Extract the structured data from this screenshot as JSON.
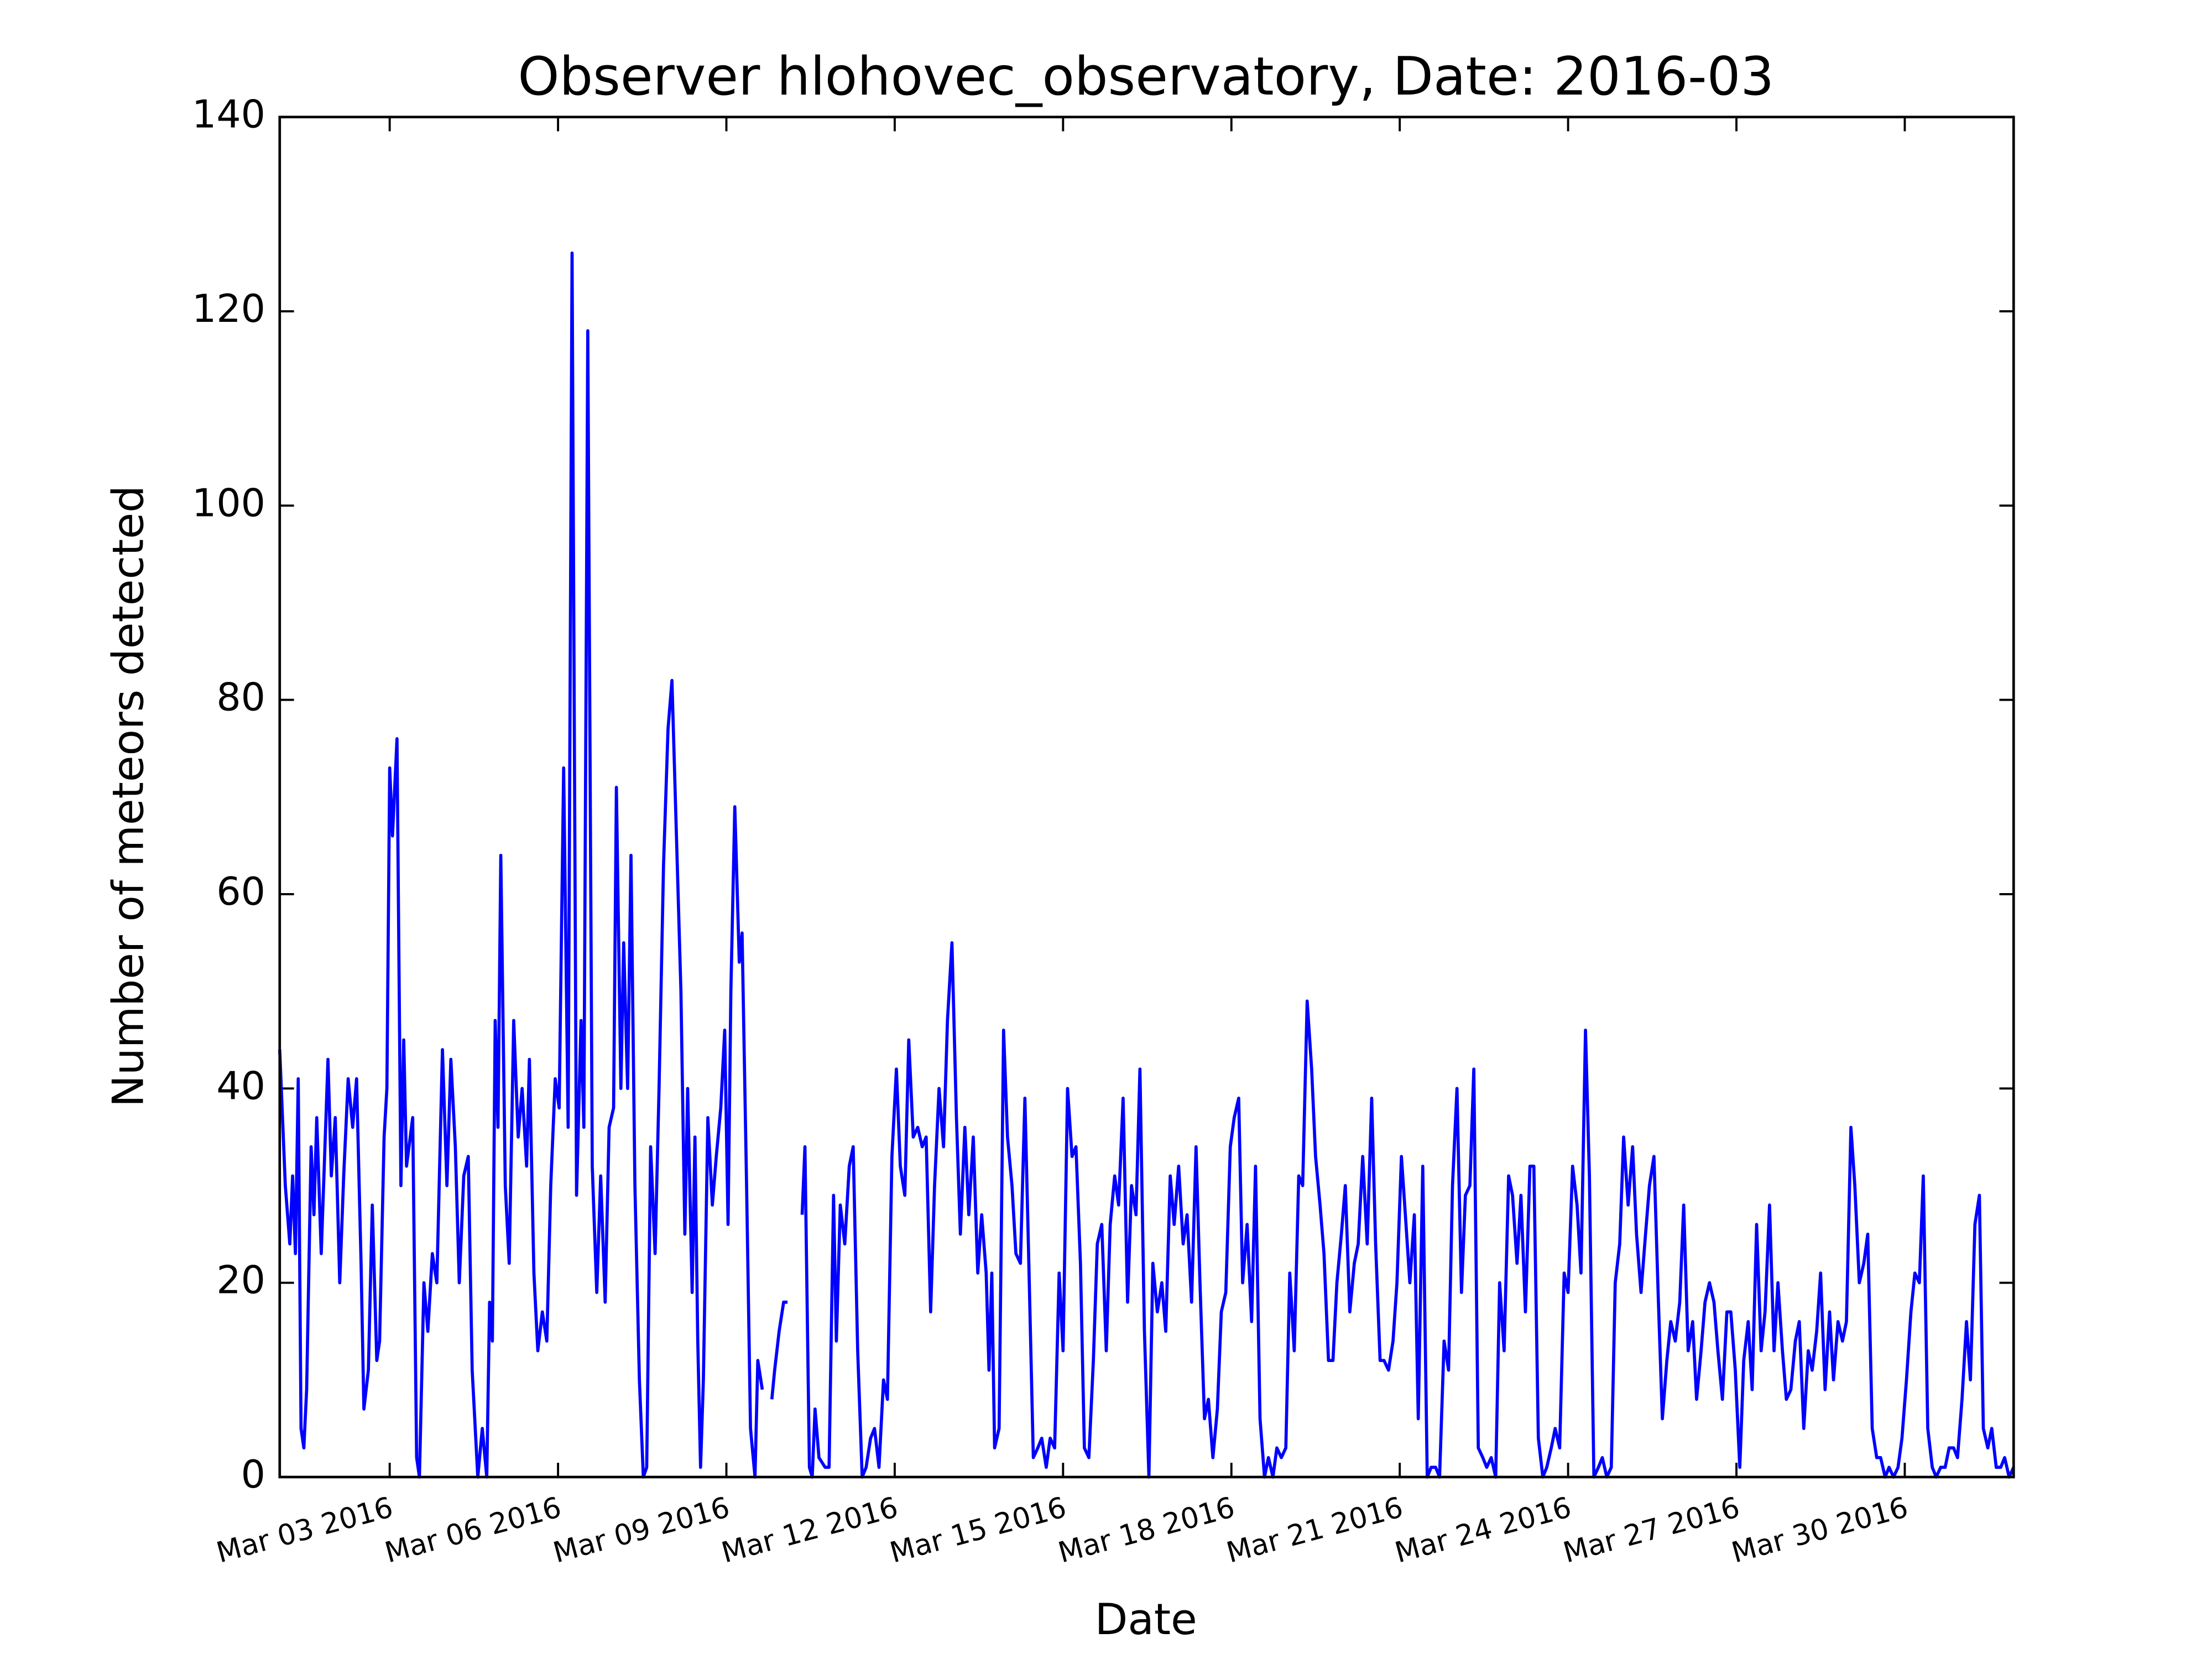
{
  "chart_data": {
    "type": "line",
    "title": "Observer hlohovec_observatory, Date: 2016-03",
    "x_label": "Date",
    "y_label": "Number of meteors detected",
    "color": "#0000ff",
    "xlim": [
      1.04,
      31.94
    ],
    "ylim": [
      0,
      140
    ],
    "yticks": [
      0,
      20,
      40,
      60,
      80,
      100,
      120,
      140
    ],
    "xticks": [
      {
        "value": 3,
        "label": "Mar 03 2016"
      },
      {
        "value": 6,
        "label": "Mar 06 2016"
      },
      {
        "value": 9,
        "label": "Mar 09 2016"
      },
      {
        "value": 12,
        "label": "Mar 12 2016"
      },
      {
        "value": 15,
        "label": "Mar 15 2016"
      },
      {
        "value": 18,
        "label": "Mar 18 2016"
      },
      {
        "value": 21,
        "label": "Mar 21 2016"
      },
      {
        "value": 24,
        "label": "Mar 24 2016"
      },
      {
        "value": 27,
        "label": "Mar 27 2016"
      },
      {
        "value": 30,
        "label": "Mar 30 2016"
      }
    ],
    "x": [
      1.04,
      1.14,
      1.22,
      1.27,
      1.32,
      1.37,
      1.42,
      1.47,
      1.52,
      1.6,
      1.65,
      1.7,
      1.78,
      1.9,
      1.96,
      2.03,
      2.11,
      2.18,
      2.26,
      2.34,
      2.41,
      2.49,
      2.54,
      2.62,
      2.69,
      2.77,
      2.82,
      2.9,
      2.95,
      3.0,
      3.05,
      3.13,
      3.2,
      3.25,
      3.3,
      3.41,
      3.48,
      3.53,
      3.61,
      3.68,
      3.76,
      3.84,
      3.94,
      4.02,
      4.09,
      4.17,
      4.24,
      4.32,
      4.4,
      4.47,
      4.57,
      4.65,
      4.73,
      4.78,
      4.83,
      4.88,
      4.93,
      4.98,
      5.06,
      5.13,
      5.21,
      5.29,
      5.36,
      5.44,
      5.49,
      5.57,
      5.64,
      5.72,
      5.8,
      5.87,
      5.95,
      6.02,
      6.1,
      6.18,
      6.25,
      6.33,
      6.41,
      6.46,
      6.53,
      6.61,
      6.69,
      6.76,
      6.84,
      6.91,
      6.99,
      7.04,
      7.12,
      7.17,
      7.24,
      7.3,
      7.37,
      7.45,
      7.52,
      7.58,
      7.65,
      7.73,
      7.8,
      7.88,
      7.96,
      8.03,
      8.11,
      8.19,
      8.26,
      8.31,
      8.39,
      8.44,
      8.49,
      8.54,
      8.59,
      8.67,
      8.75,
      8.82,
      8.9,
      8.97,
      9.03,
      9.08,
      9.15,
      9.23,
      9.28,
      9.36,
      9.43,
      9.51,
      9.56,
      9.64,
      9.71,
      9.81,
      9.86,
      9.94,
      10.02,
      10.09,
      10.17,
      10.35,
      10.4,
      10.48,
      10.53,
      10.58,
      10.65,
      10.76,
      10.83,
      10.91,
      10.96,
      11.03,
      11.11,
      11.19,
      11.26,
      11.34,
      11.42,
      11.49,
      11.57,
      11.64,
      11.72,
      11.8,
      11.87,
      11.95,
      12.03,
      12.1,
      12.18,
      12.25,
      12.33,
      12.41,
      12.49,
      12.56,
      12.64,
      12.71,
      12.79,
      12.87,
      12.94,
      13.02,
      13.1,
      13.17,
      13.25,
      13.32,
      13.4,
      13.48,
      13.55,
      13.63,
      13.68,
      13.73,
      13.78,
      13.86,
      13.94,
      14.01,
      14.09,
      14.16,
      14.24,
      14.32,
      14.39,
      14.47,
      14.55,
      14.62,
      14.7,
      14.77,
      14.85,
      14.93,
      15.0,
      15.08,
      15.16,
      15.23,
      15.31,
      15.38,
      15.46,
      15.54,
      15.61,
      15.69,
      15.77,
      15.84,
      15.92,
      15.99,
      16.07,
      16.15,
      16.22,
      16.3,
      16.37,
      16.45,
      16.53,
      16.6,
      16.68,
      16.76,
      16.83,
      16.91,
      16.98,
      17.06,
      17.14,
      17.21,
      17.29,
      17.37,
      17.44,
      17.52,
      17.59,
      17.67,
      17.75,
      17.82,
      17.9,
      17.98,
      18.05,
      18.13,
      18.2,
      18.28,
      18.36,
      18.43,
      18.51,
      18.59,
      18.66,
      18.74,
      18.81,
      18.89,
      18.97,
      19.04,
      19.12,
      19.2,
      19.27,
      19.35,
      19.43,
      19.5,
      19.58,
      19.65,
      19.73,
      19.81,
      19.88,
      19.96,
      20.03,
      20.11,
      20.19,
      20.26,
      20.34,
      20.42,
      20.5,
      20.57,
      20.65,
      20.72,
      20.8,
      20.88,
      20.95,
      21.03,
      21.1,
      21.18,
      21.26,
      21.33,
      21.41,
      21.49,
      21.56,
      21.64,
      21.71,
      21.79,
      21.87,
      21.94,
      22.02,
      22.1,
      22.17,
      22.25,
      22.32,
      22.4,
      22.48,
      22.55,
      22.63,
      22.71,
      22.78,
      22.86,
      22.94,
      23.01,
      23.09,
      23.16,
      23.24,
      23.32,
      23.39,
      23.47,
      23.55,
      23.62,
      23.7,
      23.77,
      23.85,
      23.93,
      24.0,
      24.08,
      24.16,
      24.23,
      24.31,
      24.38,
      24.46,
      24.54,
      24.61,
      24.69,
      24.77,
      24.84,
      24.92,
      24.99,
      25.07,
      25.15,
      25.22,
      25.3,
      25.38,
      25.45,
      25.53,
      25.61,
      25.68,
      25.76,
      25.83,
      25.91,
      25.99,
      26.06,
      26.14,
      26.22,
      26.29,
      26.37,
      26.44,
      26.52,
      26.6,
      26.67,
      26.75,
      26.83,
      26.9,
      26.98,
      27.06,
      27.13,
      27.21,
      27.28,
      27.36,
      27.44,
      27.51,
      27.59,
      27.67,
      27.74,
      27.82,
      27.89,
      27.97,
      28.05,
      28.12,
      28.2,
      28.28,
      28.35,
      28.43,
      28.5,
      28.58,
      28.66,
      28.73,
      28.81,
      28.89,
      28.96,
      29.04,
      29.11,
      29.19,
      29.27,
      29.34,
      29.42,
      29.5,
      29.57,
      29.65,
      29.72,
      29.8,
      29.88,
      29.95,
      30.03,
      30.11,
      30.18,
      30.26,
      30.33,
      30.41,
      30.49,
      30.56,
      30.64,
      30.72,
      30.79,
      30.87,
      30.94,
      31.02,
      31.1,
      31.17,
      31.25,
      31.33,
      31.4,
      31.48,
      31.55,
      31.63,
      31.71,
      31.78,
      31.86,
      31.94
    ],
    "values": [
      44,
      30,
      24,
      31,
      23,
      41,
      5,
      3,
      9,
      34,
      27,
      37,
      23,
      43,
      31,
      37,
      20,
      31,
      41,
      36,
      41,
      22,
      7,
      11,
      28,
      12,
      14,
      35,
      40,
      73,
      66,
      76,
      30,
      45,
      32,
      37,
      2,
      0,
      20,
      15,
      23,
      20,
      44,
      30,
      43,
      34,
      20,
      31,
      33,
      11,
      0,
      5,
      0,
      18,
      14,
      47,
      36,
      64,
      30,
      22,
      47,
      35,
      40,
      32,
      43,
      21,
      13,
      17,
      14,
      30,
      41,
      38,
      73,
      36,
      126,
      29,
      47,
      36,
      118,
      32,
      19,
      31,
      18,
      36,
      38,
      71,
      40,
      55,
      40,
      64,
      30,
      10,
      0,
      1,
      34,
      23,
      40,
      63,
      77,
      82,
      66,
      50,
      25,
      40,
      19,
      35,
      14,
      1,
      10,
      37,
      28,
      33,
      38,
      46,
      26,
      50,
      69,
      53,
      56,
      30,
      5,
      0,
      12,
      9,
      null,
      8,
      11,
      15,
      18,
      18,
      null,
      27,
      34,
      1,
      0,
      7,
      2,
      1,
      1,
      29,
      14,
      28,
      24,
      32,
      34,
      13,
      0,
      1,
      4,
      5,
      1,
      10,
      8,
      33,
      42,
      32,
      29,
      45,
      35,
      36,
      34,
      35,
      17,
      30,
      40,
      34,
      47,
      55,
      37,
      25,
      36,
      27,
      35,
      21,
      27,
      21,
      11,
      21,
      3,
      5,
      46,
      35,
      30,
      23,
      22,
      39,
      22,
      2,
      3,
      4,
      1,
      4,
      3,
      21,
      13,
      40,
      33,
      34,
      22,
      3,
      2,
      12,
      24,
      26,
      13,
      26,
      31,
      28,
      39,
      18,
      30,
      27,
      42,
      15,
      0,
      22,
      17,
      20,
      15,
      31,
      26,
      32,
      24,
      27,
      18,
      34,
      20,
      6,
      8,
      2,
      7,
      17,
      19,
      34,
      37,
      39,
      20,
      26,
      16,
      32,
      6,
      0,
      2,
      0,
      3,
      2,
      3,
      21,
      13,
      31,
      30,
      49,
      42,
      33,
      28,
      23,
      12,
      12,
      20,
      25,
      30,
      17,
      22,
      24,
      33,
      24,
      39,
      24,
      12,
      12,
      11,
      14,
      20,
      33,
      27,
      20,
      27,
      6,
      32,
      0,
      1,
      1,
      0,
      14,
      11,
      30,
      40,
      19,
      29,
      30,
      42,
      3,
      2,
      1,
      2,
      0,
      20,
      13,
      31,
      29,
      22,
      29,
      17,
      32,
      32,
      4,
      0,
      1,
      3,
      5,
      3,
      21,
      19,
      32,
      28,
      21,
      46,
      31,
      0,
      1,
      2,
      0,
      1,
      20,
      24,
      35,
      28,
      34,
      25,
      19,
      25,
      30,
      33,
      18,
      6,
      12,
      16,
      14,
      18,
      28,
      13,
      16,
      8,
      13,
      18,
      20,
      18,
      13,
      8,
      17,
      17,
      11,
      1,
      12,
      16,
      9,
      26,
      13,
      17,
      28,
      13,
      20,
      13,
      8,
      9,
      14,
      16,
      5,
      13,
      11,
      15,
      21,
      9,
      17,
      10,
      16,
      14,
      16,
      36,
      30,
      20,
      22,
      25,
      5,
      2,
      2,
      0,
      1,
      0,
      1,
      4,
      10,
      17,
      21,
      20,
      31,
      5,
      1,
      0,
      1,
      1,
      3,
      3,
      2,
      8,
      16,
      10,
      26,
      29,
      5,
      3,
      5,
      1,
      1,
      2,
      0,
      1
    ]
  }
}
